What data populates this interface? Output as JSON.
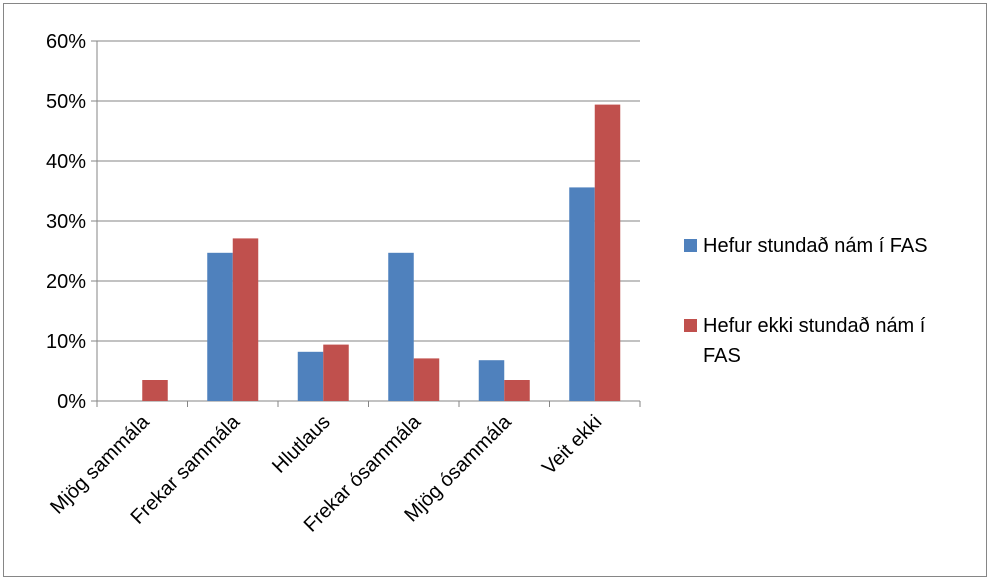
{
  "chart_data": {
    "type": "bar",
    "categories": [
      "Mjög sammála",
      "Frekar sammála",
      "Hlutlaus",
      "Frekar ósammála",
      "Mjög ósammála",
      "Veit ekki"
    ],
    "series": [
      {
        "name": "Hefur stundað nám í FAS",
        "color": "#4F81BD",
        "values": [
          0,
          24.7,
          8.2,
          24.7,
          6.8,
          35.6
        ]
      },
      {
        "name": "Hefur ekki stundað nám í FAS",
        "color": "#C0504D",
        "values": [
          3.5,
          27.1,
          9.4,
          7.1,
          3.5,
          49.4
        ]
      }
    ],
    "y_ticks": [
      "0%",
      "10%",
      "20%",
      "30%",
      "40%",
      "50%",
      "60%"
    ],
    "ylim": [
      0,
      60
    ],
    "grid": true,
    "legend_position": "right",
    "title": "",
    "xlabel": "",
    "ylabel": ""
  }
}
